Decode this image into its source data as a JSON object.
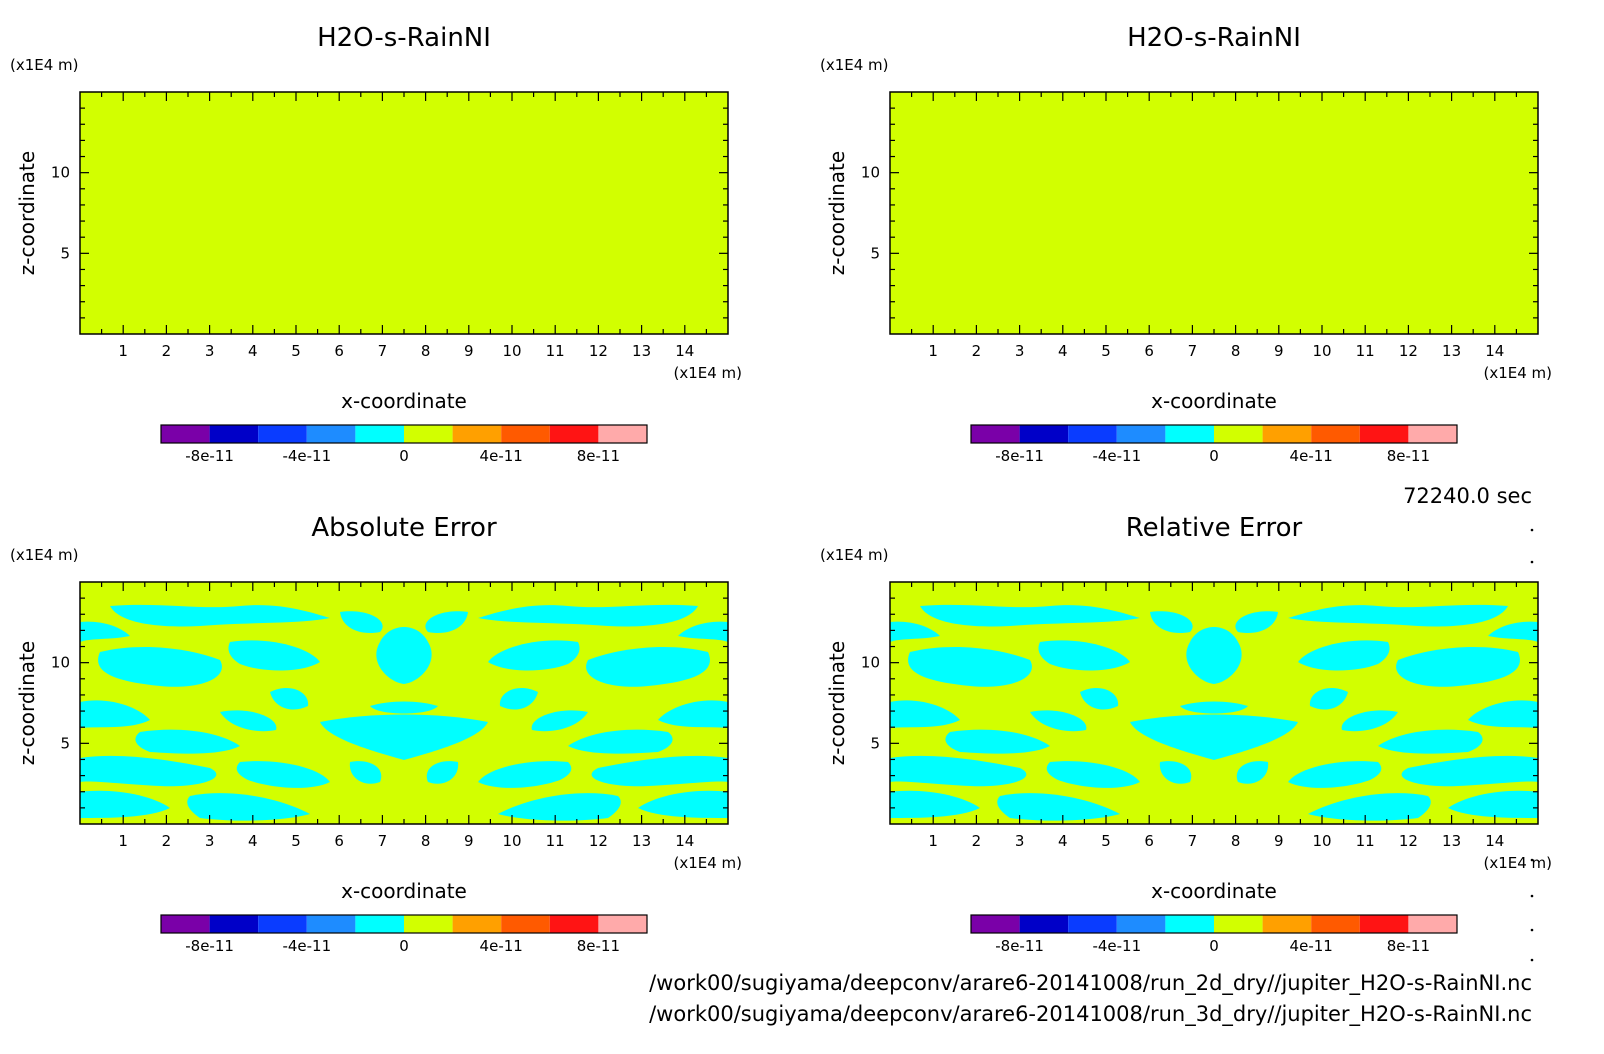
{
  "timestamp": "72240.0 sec",
  "files": [
    "/work00/sugiyama/deepconv/arare6-20141008/run_2d_dry//jupiter_H2O-s-RainNI.nc",
    "/work00/sugiyama/deepconv/arare6-20141008/run_3d_dry//jupiter_H2O-s-RainNI.nc"
  ],
  "colors": {
    "levels": [
      "#7a00a8",
      "#0000c8",
      "#0a3cff",
      "#1e8cff",
      "#00ffff",
      "#d2ff00",
      "#ffa000",
      "#ff5a00",
      "#ff1414",
      "#ffaaaa"
    ],
    "field": "#d2ff00",
    "error_low": "#00ffff"
  },
  "chart_data": [
    {
      "type": "heatmap",
      "title": "H2O-s-RainNI",
      "xlabel": "x-coordinate",
      "ylabel": "z-coordinate",
      "x_unit": "(x1E4 m)",
      "y_unit": "(x1E4 m)",
      "xlim": [
        0,
        15
      ],
      "ylim": [
        0,
        15
      ],
      "x_ticks": [
        "1",
        "2",
        "3",
        "4",
        "5",
        "6",
        "7",
        "8",
        "9",
        "10",
        "11",
        "12",
        "13",
        "14"
      ],
      "y_ticks": [
        "5",
        "10"
      ],
      "field": "uniform 0",
      "colorbar": {
        "labels": [
          "-8e-11",
          "-4e-11",
          "0",
          "4e-11",
          "8e-11"
        ],
        "range": [
          -1e-10,
          1e-10
        ]
      }
    },
    {
      "type": "heatmap",
      "title": "H2O-s-RainNI",
      "xlabel": "x-coordinate",
      "ylabel": "z-coordinate",
      "x_unit": "(x1E4 m)",
      "y_unit": "(x1E4 m)",
      "xlim": [
        0,
        15
      ],
      "ylim": [
        0,
        15
      ],
      "x_ticks": [
        "1",
        "2",
        "3",
        "4",
        "5",
        "6",
        "7",
        "8",
        "9",
        "10",
        "11",
        "12",
        "13",
        "14"
      ],
      "y_ticks": [
        "5",
        "10"
      ],
      "field": "uniform 0",
      "colorbar": {
        "labels": [
          "-8e-11",
          "-4e-11",
          "0",
          "4e-11",
          "8e-11"
        ],
        "range": [
          -1e-10,
          1e-10
        ]
      }
    },
    {
      "type": "heatmap",
      "title": "Absolute Error",
      "xlabel": "x-coordinate",
      "ylabel": "z-coordinate",
      "x_unit": "(x1E4 m)",
      "y_unit": "(x1E4 m)",
      "xlim": [
        0,
        15
      ],
      "ylim": [
        0,
        15
      ],
      "x_ticks": [
        "1",
        "2",
        "3",
        "4",
        "5",
        "6",
        "7",
        "8",
        "9",
        "10",
        "11",
        "12",
        "13",
        "14"
      ],
      "y_ticks": [
        "5",
        "10"
      ],
      "field": "patchy, values between -2e-11 and 2e-11, symmetric about x=7.5",
      "colorbar": {
        "labels": [
          "-8e-11",
          "-4e-11",
          "0",
          "4e-11",
          "8e-11"
        ],
        "range": [
          -1e-10,
          1e-10
        ]
      }
    },
    {
      "type": "heatmap",
      "title": "Relative Error",
      "xlabel": "x-coordinate",
      "ylabel": "z-coordinate",
      "x_unit": "(x1E4 m)",
      "y_unit": "(x1E4 m)",
      "xlim": [
        0,
        15
      ],
      "ylim": [
        0,
        15
      ],
      "x_ticks": [
        "1",
        "2",
        "3",
        "4",
        "5",
        "6",
        "7",
        "8",
        "9",
        "10",
        "11",
        "12",
        "13",
        "14"
      ],
      "y_ticks": [
        "5",
        "10"
      ],
      "field": "patchy, values between -2e-11 and 2e-11, symmetric about x=7.5",
      "colorbar": {
        "labels": [
          "-8e-11",
          "-4e-11",
          "0",
          "4e-11",
          "8e-11"
        ],
        "range": [
          -1e-10,
          1e-10
        ]
      }
    }
  ]
}
